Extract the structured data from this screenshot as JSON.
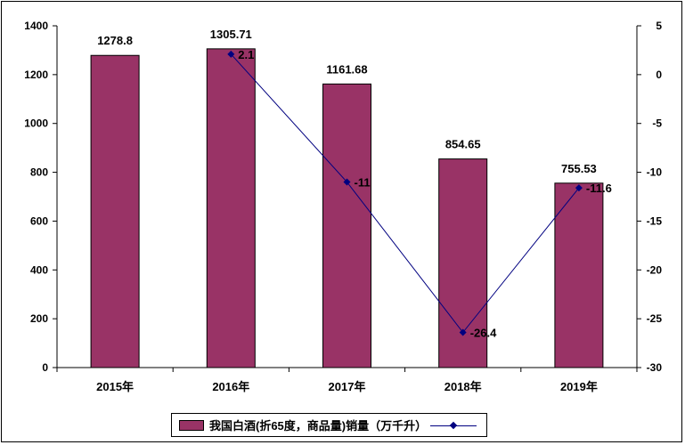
{
  "chart_data": {
    "type": "bar",
    "categories": [
      "2015年",
      "2016年",
      "2017年",
      "2018年",
      "2019年"
    ],
    "series": [
      {
        "name": "我国白酒(折65度，商品量)销量（万千升）",
        "type": "bar",
        "axis": "left",
        "values": [
          1278.8,
          1305.71,
          1161.68,
          854.65,
          755.53
        ],
        "labels": [
          "1278.8",
          "1305.71",
          "1161.68",
          "854.65",
          "755.53"
        ]
      },
      {
        "name": "",
        "type": "line",
        "axis": "right",
        "values": [
          null,
          2.1,
          -11,
          -26.4,
          -11.6
        ],
        "labels": [
          "",
          "2.1",
          "-11",
          "-26.4",
          "-11.6"
        ]
      }
    ],
    "y_left": {
      "min": 0,
      "max": 1400,
      "ticks": [
        0,
        200,
        400,
        600,
        800,
        1000,
        1200,
        1400
      ]
    },
    "y_right": {
      "min": -30,
      "max": 5,
      "ticks": [
        -30,
        -25,
        -20,
        -15,
        -10,
        -5,
        0,
        5
      ]
    },
    "grid": false,
    "legend_position": "bottom"
  },
  "colors": {
    "bar": "#993366",
    "line": "#000080"
  },
  "legend": {
    "bar_label": "我国白酒(折65度，商品量)销量（万千升）"
  }
}
